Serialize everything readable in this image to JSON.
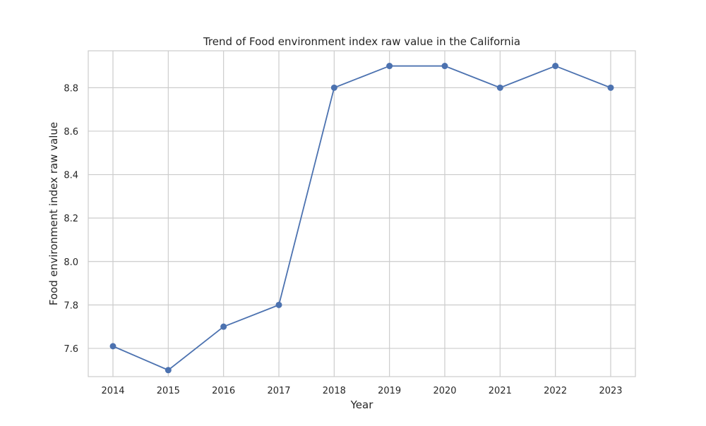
{
  "chart_data": {
    "type": "line",
    "title": "Trend of Food environment index raw value in the California",
    "xlabel": "Year",
    "ylabel": "Food environment index raw value",
    "x": [
      2014,
      2015,
      2016,
      2017,
      2018,
      2019,
      2020,
      2021,
      2022,
      2023
    ],
    "series": [
      {
        "values": [
          7.61,
          7.5,
          7.7,
          7.8,
          8.8,
          8.9,
          8.9,
          8.8,
          8.9,
          8.8
        ]
      }
    ],
    "xticks": [
      "2014",
      "2015",
      "2016",
      "2017",
      "2018",
      "2019",
      "2020",
      "2021",
      "2022",
      "2023"
    ],
    "yticks": [
      "7.6",
      "7.8",
      "8.0",
      "8.2",
      "8.4",
      "8.6",
      "8.8"
    ],
    "ylim": [
      7.47,
      8.97
    ],
    "grid": true,
    "colors": {
      "line": "#4c72b0",
      "grid": "#cccccc",
      "frame": "#cccccc"
    }
  }
}
